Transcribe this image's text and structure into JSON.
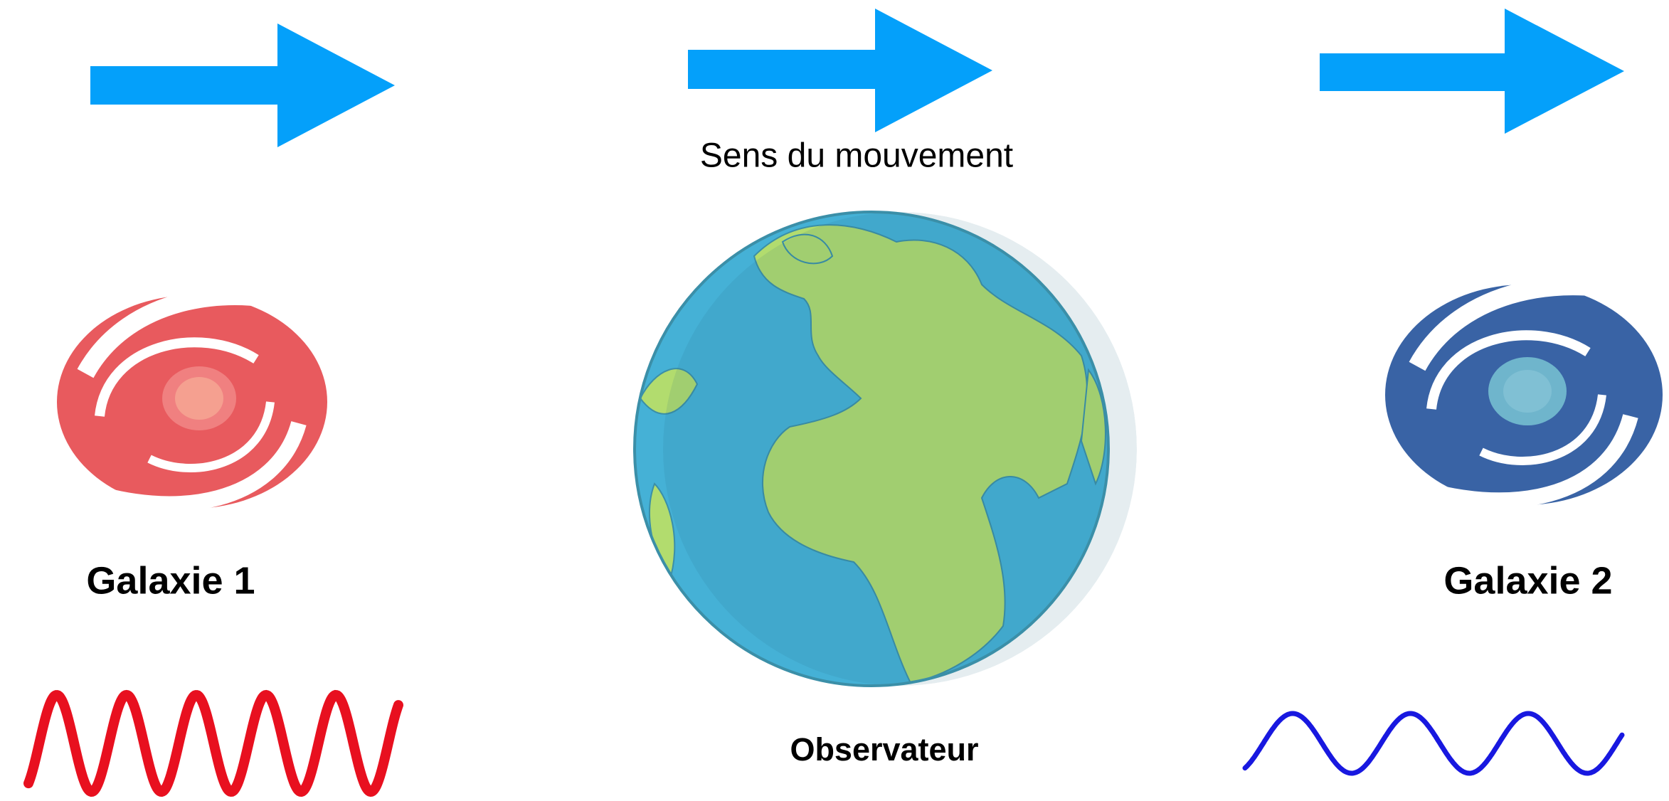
{
  "motion_label": "Sens du mouvement",
  "galaxy_1": {
    "label": "Galaxie 1"
  },
  "galaxy_2": {
    "label": "Galaxie 2"
  },
  "observer": {
    "label": "Observateur"
  }
}
